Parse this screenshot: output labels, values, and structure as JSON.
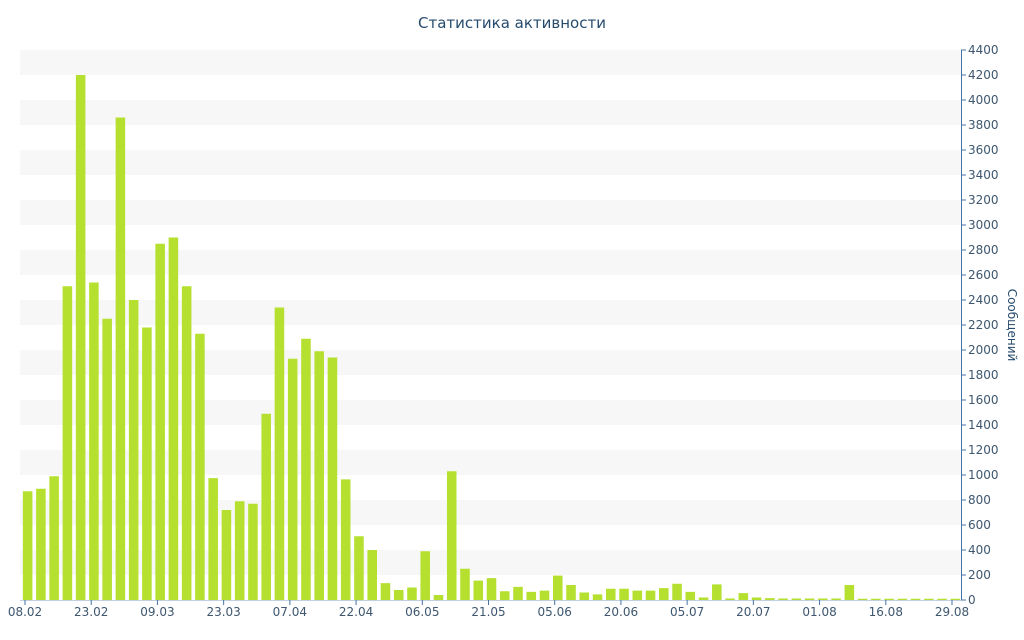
{
  "chart_data": {
    "type": "bar",
    "title": "Статистика активности",
    "ylabel": "Сообщений",
    "xlabel": "",
    "ylim": [
      0,
      4400
    ],
    "y_ticks": [
      0,
      200,
      400,
      600,
      800,
      1000,
      1200,
      1400,
      1600,
      1800,
      2000,
      2200,
      2400,
      2600,
      2800,
      3000,
      3200,
      3400,
      3600,
      3800,
      4000,
      4200,
      4400
    ],
    "x_tick_labels": [
      "08.02",
      "23.02",
      "09.03",
      "23.03",
      "07.04",
      "22.04",
      "06.05",
      "21.05",
      "05.06",
      "20.06",
      "05.07",
      "20.07",
      "01.08",
      "16.08",
      "29.08"
    ],
    "grid": "alternating horizontal bands",
    "colors": {
      "bar": "#b5e02f",
      "band": "#f7f7f7",
      "axis": "#4572a7",
      "text": "#3e576f",
      "title": "#274b6d"
    },
    "values": [
      870,
      890,
      990,
      2510,
      4200,
      2540,
      2250,
      3860,
      2400,
      2180,
      2850,
      2900,
      2510,
      2130,
      975,
      720,
      790,
      770,
      1490,
      2340,
      1930,
      2090,
      1990,
      1940,
      965,
      510,
      400,
      135,
      80,
      100,
      390,
      40,
      1030,
      250,
      155,
      175,
      70,
      105,
      65,
      75,
      195,
      120,
      60,
      45,
      90,
      90,
      75,
      75,
      95,
      130,
      65,
      20,
      125,
      12,
      55,
      20,
      15,
      12,
      12,
      12,
      12,
      12,
      120,
      10,
      10,
      10,
      10,
      10,
      10,
      10,
      10
    ]
  }
}
